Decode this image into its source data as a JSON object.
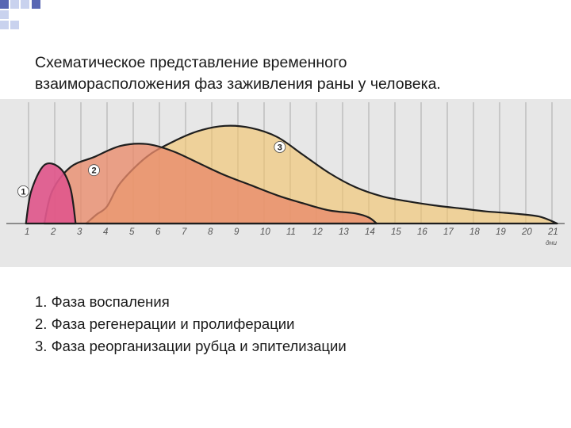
{
  "title": {
    "line1": "Схематическое представление временного",
    "line2": "взаиморасположения фаз заживления раны у человека."
  },
  "legend": {
    "items": [
      "1. Фаза воспаления",
      "2. Фаза регенерации и пролиферации",
      "3. Фаза реорганизации рубца и эпителизации"
    ]
  },
  "colors": {
    "background": "#e7e7e7",
    "phase1": "#e0588c",
    "phase2": "#e98a6a",
    "phase3": "#f2c46a",
    "accent_square": "#5967b3",
    "light_square": "#c9d2ee"
  },
  "chart_data": {
    "type": "area",
    "x_unit_label": "дни",
    "xlim": [
      0,
      21
    ],
    "ylim": [
      0,
      1
    ],
    "ticks": [
      "1",
      "2",
      "3",
      "4",
      "5",
      "6",
      "7",
      "8",
      "9",
      "10",
      "11",
      "12",
      "13",
      "14",
      "15",
      "16",
      "17",
      "18",
      "19",
      "20",
      "21"
    ],
    "grid": true,
    "series": [
      {
        "name": "1",
        "points": [
          [
            0.9,
            0
          ],
          [
            1.1,
            0.32
          ],
          [
            1.6,
            0.58
          ],
          [
            2.2,
            0.55
          ],
          [
            2.6,
            0.35
          ],
          [
            2.8,
            0
          ]
        ]
      },
      {
        "name": "2",
        "points": [
          [
            1.6,
            0
          ],
          [
            1.9,
            0.32
          ],
          [
            2.6,
            0.56
          ],
          [
            3.5,
            0.66
          ],
          [
            4.5,
            0.77
          ],
          [
            5.5,
            0.79
          ],
          [
            6.5,
            0.72
          ],
          [
            7.5,
            0.6
          ],
          [
            8.5,
            0.48
          ],
          [
            9.5,
            0.38
          ],
          [
            10.5,
            0.28
          ],
          [
            11.5,
            0.2
          ],
          [
            12.5,
            0.13
          ],
          [
            13.5,
            0.1
          ],
          [
            14.0,
            0.06
          ],
          [
            14.3,
            0
          ]
        ]
      },
      {
        "name": "3",
        "points": [
          [
            3.2,
            0
          ],
          [
            3.6,
            0.09
          ],
          [
            4.0,
            0.17
          ],
          [
            4.5,
            0.4
          ],
          [
            5.5,
            0.66
          ],
          [
            6.5,
            0.81
          ],
          [
            7.5,
            0.92
          ],
          [
            8.5,
            0.97
          ],
          [
            9.5,
            0.95
          ],
          [
            10.5,
            0.86
          ],
          [
            11.5,
            0.68
          ],
          [
            12.5,
            0.5
          ],
          [
            13.5,
            0.36
          ],
          [
            14.5,
            0.27
          ],
          [
            15.5,
            0.22
          ],
          [
            16.5,
            0.18
          ],
          [
            17.5,
            0.15
          ],
          [
            18.5,
            0.12
          ],
          [
            19.5,
            0.1
          ],
          [
            20.5,
            0.07
          ],
          [
            21.2,
            0
          ]
        ]
      }
    ]
  }
}
